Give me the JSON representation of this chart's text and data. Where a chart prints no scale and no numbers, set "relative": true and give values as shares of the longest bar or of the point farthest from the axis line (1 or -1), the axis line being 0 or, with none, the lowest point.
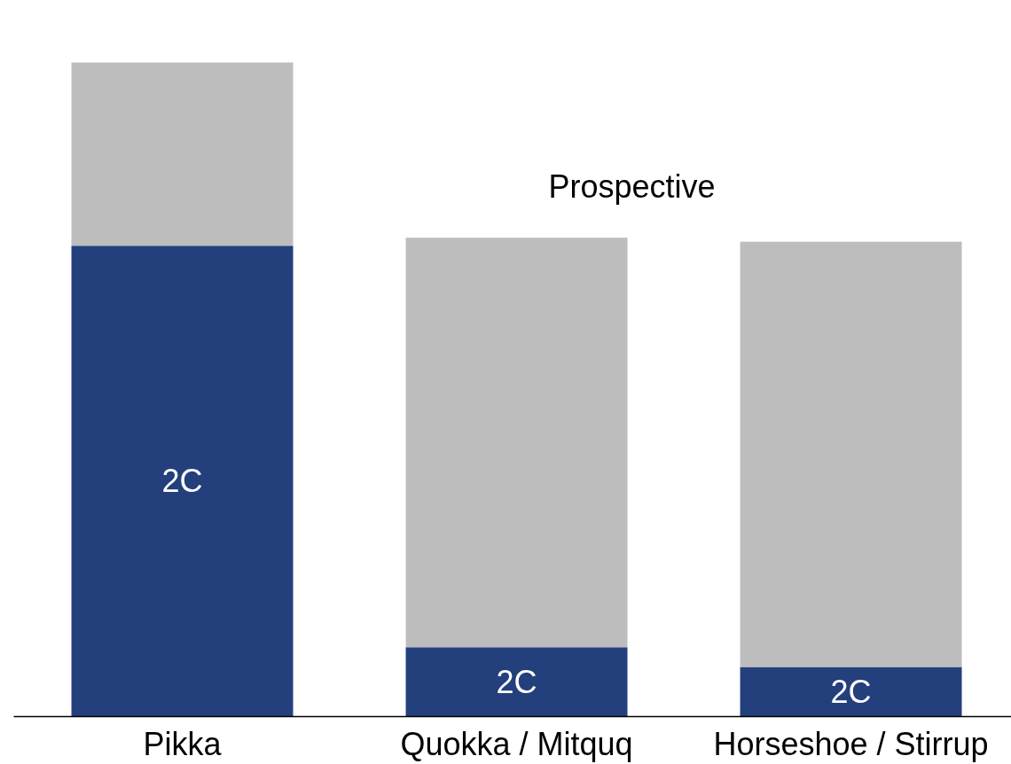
{
  "chart_data": {
    "type": "bar",
    "stacked": true,
    "relative": true,
    "tick_labels": "x",
    "categories": [
      "Pikka",
      "Quokka / Mitquq",
      "Horseshoe / Stirrup"
    ],
    "series": [
      {
        "name": "2C",
        "color": "#233f7c",
        "values": [
          0.72,
          0.106,
          0.076
        ]
      },
      {
        "name": "Prospective",
        "color": "#bdbdbd",
        "values": [
          0.28,
          0.626,
          0.65
        ]
      }
    ]
  }
}
